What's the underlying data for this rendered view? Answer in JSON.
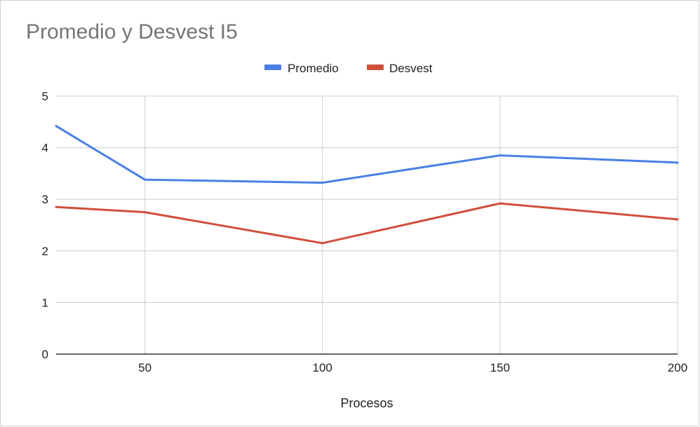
{
  "chart_data": {
    "type": "line",
    "title": "Promedio y Desvest I5",
    "xlabel": "Procesos",
    "ylabel": "",
    "x": [
      25,
      50,
      100,
      150,
      200
    ],
    "x_ticks": [
      "50",
      "100",
      "150",
      "200"
    ],
    "x_tick_values": [
      50,
      100,
      150,
      200
    ],
    "xlim": [
      25,
      200
    ],
    "ylim": [
      0,
      5
    ],
    "y_ticks": [
      "0",
      "1",
      "2",
      "3",
      "4",
      "5"
    ],
    "y_tick_values": [
      0,
      1,
      2,
      3,
      4,
      5
    ],
    "grid": true,
    "legend_position": "top-center",
    "series": [
      {
        "name": "Promedio",
        "color": "#4a7fe6",
        "values": [
          4.42,
          3.38,
          3.32,
          3.85,
          3.71
        ]
      },
      {
        "name": "Desvest",
        "color": "#d14e3a",
        "values": [
          2.85,
          2.75,
          2.15,
          2.92,
          2.61
        ]
      }
    ]
  }
}
